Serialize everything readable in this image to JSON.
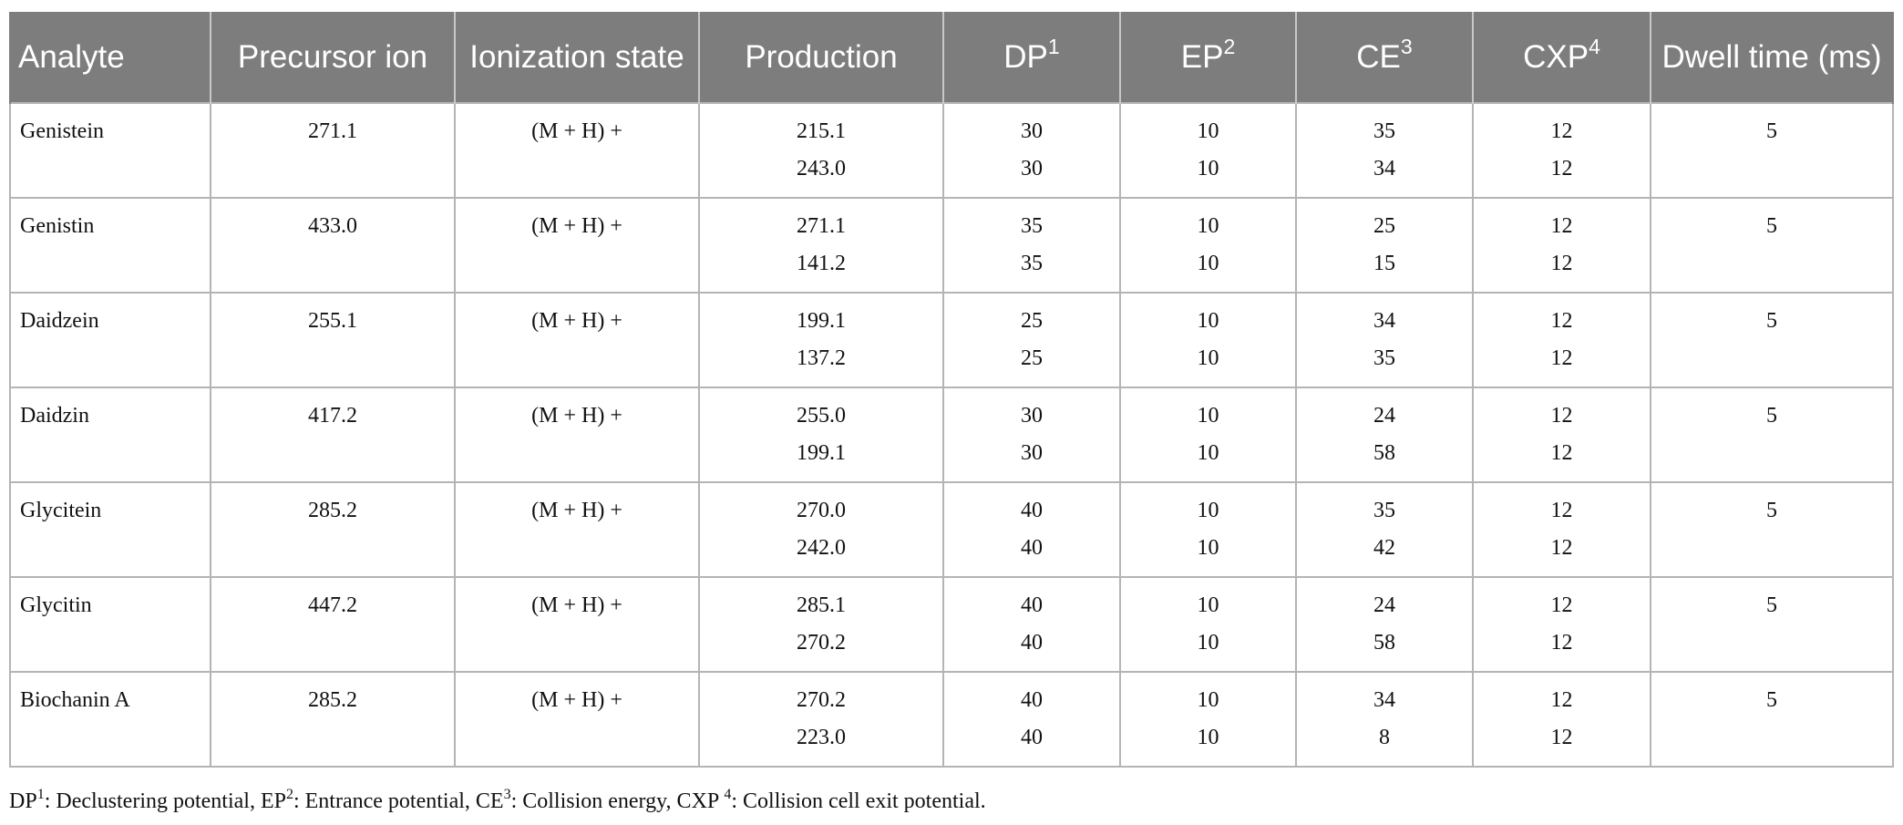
{
  "table": {
    "headers": [
      {
        "text": "Analyte",
        "sup": ""
      },
      {
        "text": "Precursor ion",
        "sup": ""
      },
      {
        "text": "Ionization state",
        "sup": ""
      },
      {
        "text": "Production",
        "sup": ""
      },
      {
        "text": "DP",
        "sup": "1"
      },
      {
        "text": "EP",
        "sup": "2"
      },
      {
        "text": "CE",
        "sup": "3"
      },
      {
        "text": "CXP",
        "sup": "4"
      },
      {
        "text": "Dwell time (ms)",
        "sup": ""
      }
    ],
    "rows": [
      {
        "analyte": "Genistein",
        "precursor": "271.1",
        "ionization": "(M + H) +",
        "production": [
          "215.1",
          "243.0"
        ],
        "dp": [
          "30",
          "30"
        ],
        "ep": [
          "10",
          "10"
        ],
        "ce": [
          "35",
          "34"
        ],
        "cxp": [
          "12",
          "12"
        ],
        "dwell": "5"
      },
      {
        "analyte": "Genistin",
        "precursor": "433.0",
        "ionization": "(M + H) +",
        "production": [
          "271.1",
          "141.2"
        ],
        "dp": [
          "35",
          "35"
        ],
        "ep": [
          "10",
          "10"
        ],
        "ce": [
          "25",
          "15"
        ],
        "cxp": [
          "12",
          "12"
        ],
        "dwell": "5"
      },
      {
        "analyte": "Daidzein",
        "precursor": "255.1",
        "ionization": "(M + H) +",
        "production": [
          "199.1",
          "137.2"
        ],
        "dp": [
          "25",
          "25"
        ],
        "ep": [
          "10",
          "10"
        ],
        "ce": [
          "34",
          "35"
        ],
        "cxp": [
          "12",
          "12"
        ],
        "dwell": "5"
      },
      {
        "analyte": "Daidzin",
        "precursor": "417.2",
        "ionization": "(M + H) +",
        "production": [
          "255.0",
          "199.1"
        ],
        "dp": [
          "30",
          "30"
        ],
        "ep": [
          "10",
          "10"
        ],
        "ce": [
          "24",
          "58"
        ],
        "cxp": [
          "12",
          "12"
        ],
        "dwell": "5"
      },
      {
        "analyte": "Glycitein",
        "precursor": "285.2",
        "ionization": "(M + H) +",
        "production": [
          "270.0",
          "242.0"
        ],
        "dp": [
          "40",
          "40"
        ],
        "ep": [
          "10",
          "10"
        ],
        "ce": [
          "35",
          "42"
        ],
        "cxp": [
          "12",
          "12"
        ],
        "dwell": "5"
      },
      {
        "analyte": "Glycitin",
        "precursor": "447.2",
        "ionization": "(M + H) +",
        "production": [
          "285.1",
          "270.2"
        ],
        "dp": [
          "40",
          "40"
        ],
        "ep": [
          "10",
          "10"
        ],
        "ce": [
          "24",
          "58"
        ],
        "cxp": [
          "12",
          "12"
        ],
        "dwell": "5"
      },
      {
        "analyte": "Biochanin A",
        "precursor": "285.2",
        "ionization": "(M + H) +",
        "production": [
          "270.2",
          "223.0"
        ],
        "dp": [
          "40",
          "40"
        ],
        "ep": [
          "10",
          "10"
        ],
        "ce": [
          "34",
          "8"
        ],
        "cxp": [
          "12",
          "12"
        ],
        "dwell": "5"
      }
    ]
  },
  "footnote": [
    {
      "text": "DP",
      "sup": "1"
    },
    {
      "text": ": Declustering potential, EP",
      "sup": "2"
    },
    {
      "text": ": Entrance potential, CE",
      "sup": "3"
    },
    {
      "text": ": Collision energy, CXP ",
      "sup": "4"
    },
    {
      "text": ": Collision cell exit potential.",
      "sup": ""
    }
  ]
}
